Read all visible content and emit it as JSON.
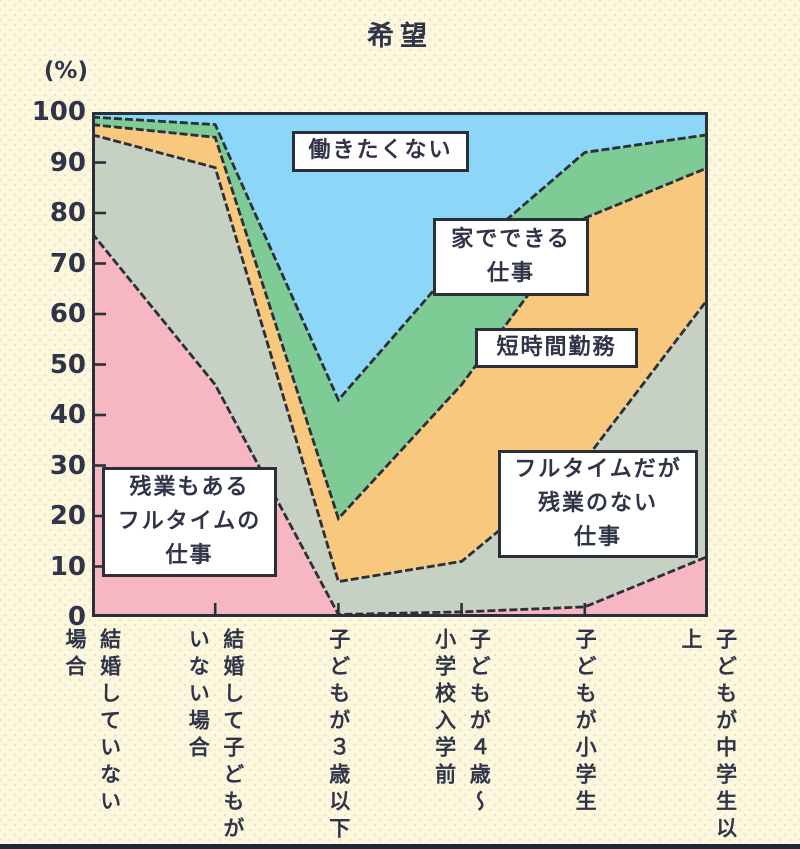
{
  "title": "希望",
  "y_axis": {
    "unit": "(%)",
    "ticks": [
      "100",
      "90",
      "80",
      "70",
      "60",
      "50",
      "40",
      "30",
      "20",
      "10",
      "0"
    ]
  },
  "x_labels": [
    [
      "結婚していない",
      "場合"
    ],
    [
      "結婚して子どもが",
      "いない場合"
    ],
    [
      "子どもが３歳以下"
    ],
    [
      "子どもが４歳〜",
      "小学校入学前"
    ],
    [
      "子どもが小学生"
    ],
    [
      "子どもが中学生以上"
    ]
  ],
  "area_labels": {
    "no_work": [
      "働きたくない"
    ],
    "home_work": [
      "家でできる",
      "仕事"
    ],
    "short_hours": [
      "短時間勤務"
    ],
    "fulltime_no_overtime": [
      "フルタイムだが",
      "残業のない",
      "仕事"
    ],
    "fulltime_overtime": [
      "残業もある",
      "フルタイムの",
      "仕事"
    ]
  },
  "chart_data": {
    "type": "area",
    "stacked": true,
    "title": "希望",
    "unit": "%",
    "ylim": [
      0,
      100
    ],
    "grid": false,
    "categories": [
      "結婚していない場合",
      "結婚して子どもがいない場合",
      "子どもが３歳以下",
      "子どもが４歳〜小学校入学前",
      "子どもが小学生",
      "子どもが中学生以上"
    ],
    "series": [
      {
        "name": "残業もあるフルタイムの仕事",
        "color": "#f6b6c2",
        "values": [
          76,
          46,
          0.5,
          1,
          2,
          12
        ]
      },
      {
        "name": "フルタイムだが残業のない仕事",
        "color": "#c6d1c3",
        "values": [
          19.5,
          43,
          6.5,
          10,
          29,
          51
        ]
      },
      {
        "name": "短時間勤務",
        "color": "#f9c87f",
        "values": [
          2,
          6,
          12.5,
          35,
          48,
          26
        ]
      },
      {
        "name": "家でできる仕事",
        "color": "#7ecb96",
        "values": [
          1.5,
          2.5,
          23.5,
          25,
          13,
          6.5
        ]
      },
      {
        "name": "働きたくない",
        "color": "#8cd6f7",
        "values": [
          1,
          2.5,
          57,
          29,
          8,
          4.5
        ]
      }
    ]
  },
  "colors": {
    "background": "#fcf8dd",
    "line": "#2a2f3a",
    "text": "#2f3448",
    "label_box": "#ffffff"
  }
}
